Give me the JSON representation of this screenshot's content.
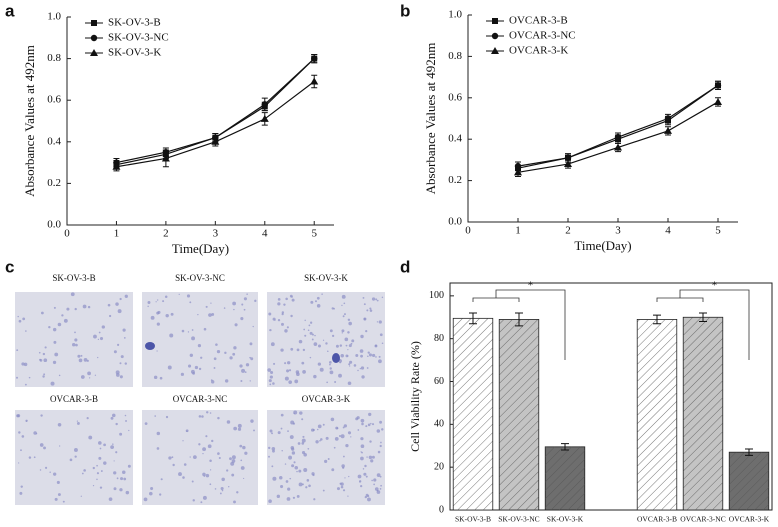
{
  "chart_data": [
    {
      "type": "line",
      "panel": "a",
      "xlabel": "Time(Day)",
      "ylabel": "Absorbance Values at 492nm",
      "x": [
        1,
        2,
        3,
        4,
        5
      ],
      "xlim": [
        0,
        5.4
      ],
      "xticks": [
        0,
        1,
        2,
        3,
        4,
        5
      ],
      "ylim": [
        0,
        1.0
      ],
      "yticks": [
        {
          "value": 0,
          "label": "0.0"
        },
        0.2,
        0.4,
        0.6,
        0.8,
        {
          "value": 1,
          "label": "1.0"
        }
      ],
      "legend": "upper left",
      "grid": false,
      "series": [
        {
          "name": "SK-OV-3-B",
          "color": "#111111",
          "marker": "square",
          "values": [
            0.29,
            0.34,
            0.42,
            0.57,
            0.8
          ],
          "errors": [
            0.02,
            0.02,
            0.02,
            0.02,
            0.02
          ]
        },
        {
          "name": "SK-OV-3-NC",
          "color": "#111111",
          "marker": "circle",
          "values": [
            0.3,
            0.35,
            0.42,
            0.58,
            0.8
          ],
          "errors": [
            0.02,
            0.02,
            0.02,
            0.03,
            0.02
          ]
        },
        {
          "name": "SK-OV-3-K",
          "color": "#111111",
          "marker": "triangle",
          "values": [
            0.28,
            0.32,
            0.4,
            0.51,
            0.69
          ],
          "errors": [
            0.02,
            0.04,
            0.02,
            0.03,
            0.03
          ]
        }
      ]
    },
    {
      "type": "line",
      "panel": "b",
      "xlabel": "Time(Day)",
      "ylabel": "Absorbance Values at 492nm",
      "x": [
        1,
        2,
        3,
        4,
        5
      ],
      "xlim": [
        0,
        5.4
      ],
      "xticks": [
        0,
        1,
        2,
        3,
        4,
        5
      ],
      "ylim": [
        0,
        1.0
      ],
      "yticks": [
        {
          "value": 0,
          "label": "0.0"
        },
        0.2,
        0.4,
        0.6,
        0.8,
        {
          "value": 1,
          "label": "1.0"
        }
      ],
      "legend": "upper left",
      "grid": false,
      "series": [
        {
          "name": "OVCAR-3-B",
          "color": "#111111",
          "marker": "square",
          "values": [
            0.26,
            0.31,
            0.4,
            0.49,
            0.66
          ],
          "errors": [
            0.03,
            0.02,
            0.02,
            0.02,
            0.02
          ]
        },
        {
          "name": "OVCAR-3-NC",
          "color": "#111111",
          "marker": "circle",
          "values": [
            0.27,
            0.31,
            0.41,
            0.5,
            0.66
          ],
          "errors": [
            0.02,
            0.02,
            0.02,
            0.02,
            0.02
          ]
        },
        {
          "name": "OVCAR-3-K",
          "color": "#111111",
          "marker": "triangle",
          "values": [
            0.24,
            0.28,
            0.36,
            0.44,
            0.58
          ],
          "errors": [
            0.02,
            0.02,
            0.02,
            0.02,
            0.02
          ]
        }
      ]
    },
    {
      "type": "bar",
      "panel": "d",
      "ylabel": "Cell Viability Rate (%)",
      "categories": [
        "SK-OV-3-B",
        "SK-OV-3-NC",
        "SK-OV-3-K",
        null,
        "OVCAR-3-B",
        "OVCAR-3-NC",
        "OVCAR-3-K"
      ],
      "values": [
        89.5,
        89,
        29.5,
        null,
        89,
        90,
        27
      ],
      "errors": [
        2.5,
        3,
        1.5,
        null,
        2,
        2,
        1.5
      ],
      "colors": [
        "#ffffff",
        "#c4c4c4",
        "#6e6e6e",
        null,
        "#ffffff",
        "#c4c4c4",
        "#6e6e6e"
      ],
      "hatch": true,
      "ylim": [
        0,
        106
      ],
      "yticks": [
        0,
        20,
        40,
        60,
        80,
        100
      ],
      "grid": false,
      "annotations": [
        "*",
        "*"
      ]
    }
  ],
  "micrographs": {
    "panel": "c",
    "labels": [
      "SK-OV-3-B",
      "SK-OV-3-NC",
      "SK-OV-3-K",
      "OVCAR-3-B",
      "OVCAR-3-NC",
      "OVCAR-3-K"
    ]
  }
}
